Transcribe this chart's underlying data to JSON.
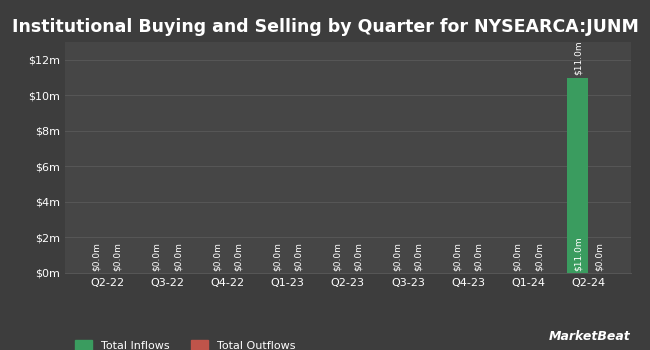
{
  "title": "Institutional Buying and Selling by Quarter for NYSEARCA:JUNM",
  "quarters": [
    "Q2-22",
    "Q3-22",
    "Q4-22",
    "Q1-23",
    "Q2-23",
    "Q3-23",
    "Q4-23",
    "Q1-24",
    "Q2-24"
  ],
  "inflows": [
    0.0001,
    0.0001,
    0.0001,
    0.0001,
    0.0001,
    0.0001,
    0.0001,
    0.0001,
    11.0
  ],
  "outflows": [
    0.0001,
    0.0001,
    0.0001,
    0.0001,
    0.0001,
    0.0001,
    0.0001,
    0.0001,
    0.0001
  ],
  "inflow_labels": [
    "$0.0m",
    "$0.0m",
    "$0.0m",
    "$0.0m",
    "$0.0m",
    "$0.0m",
    "$0.0m",
    "$0.0m",
    "$11.0m"
  ],
  "outflow_labels": [
    "$0.0m",
    "$0.0m",
    "$0.0m",
    "$0.0m",
    "$0.0m",
    "$0.0m",
    "$0.0m",
    "$0.0m",
    "$0.0m"
  ],
  "inflow_color": "#3a9c5f",
  "outflow_color": "#c0544a",
  "bg_color": "#3d3d3d",
  "plot_bg_color": "#464646",
  "grid_color": "#575757",
  "text_color": "#ffffff",
  "title_fontsize": 12.5,
  "tick_fontsize": 8,
  "label_fontsize": 6.5,
  "ylim": [
    0,
    13
  ],
  "yticks": [
    0,
    2,
    4,
    6,
    8,
    10,
    12
  ],
  "ytick_labels": [
    "$0m",
    "$2m",
    "$4m",
    "$6m",
    "$8m",
    "$10m",
    "$12m"
  ],
  "legend_inflow": "Total Inflows",
  "legend_outflow": "Total Outflows",
  "bar_width": 0.35,
  "watermark": "MarketBeat"
}
